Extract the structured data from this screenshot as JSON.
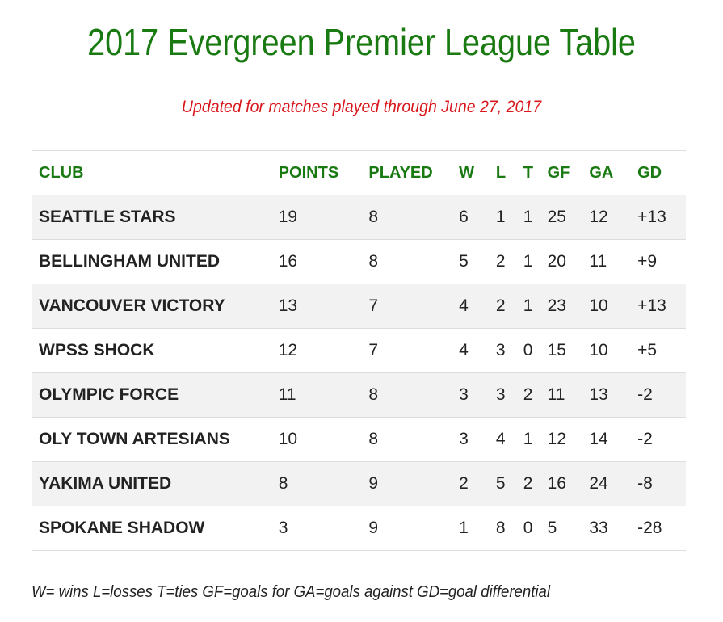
{
  "page": {
    "title": "2017 Evergreen Premier League Table",
    "subtitle": "Updated for matches played through June 27, 2017",
    "legend": "W= wins L=losses T=ties GF=goals for GA=goals against GD=goal differential"
  },
  "colors": {
    "title": "#1a7a12",
    "subtitle": "#d9181e",
    "header": "#1a7a12",
    "row_stripe": "#f2f2f2"
  },
  "table": {
    "headers": [
      "CLUB",
      "POINTS",
      "PLAYED",
      "W",
      "L",
      "T",
      "GF",
      "GA",
      "GD"
    ],
    "rows": [
      [
        "SEATTLE STARS",
        "19",
        "8",
        "6",
        "1",
        "1",
        "25",
        "12",
        "+13"
      ],
      [
        "BELLINGHAM UNITED",
        "16",
        "8",
        "5",
        "2",
        "1",
        "20",
        "11",
        "+9"
      ],
      [
        "VANCOUVER VICTORY",
        "13",
        "7",
        "4",
        "2",
        "1",
        "23",
        "10",
        "+13"
      ],
      [
        "WPSS SHOCK",
        "12",
        "7",
        "4",
        "3",
        "0",
        "15",
        "10",
        "+5"
      ],
      [
        "OLYMPIC FORCE",
        "11",
        "8",
        "3",
        "3",
        "2",
        "11",
        "13",
        "-2"
      ],
      [
        "OLY TOWN ARTESIANS",
        "10",
        "8",
        "3",
        "4",
        "1",
        "12",
        "14",
        "-2"
      ],
      [
        "YAKIMA UNITED",
        "8",
        "9",
        "2",
        "5",
        "2",
        "16",
        "24",
        "-8"
      ],
      [
        "SPOKANE SHADOW",
        "3",
        "9",
        "1",
        "8",
        "0",
        "5",
        "33",
        "-28"
      ]
    ]
  }
}
